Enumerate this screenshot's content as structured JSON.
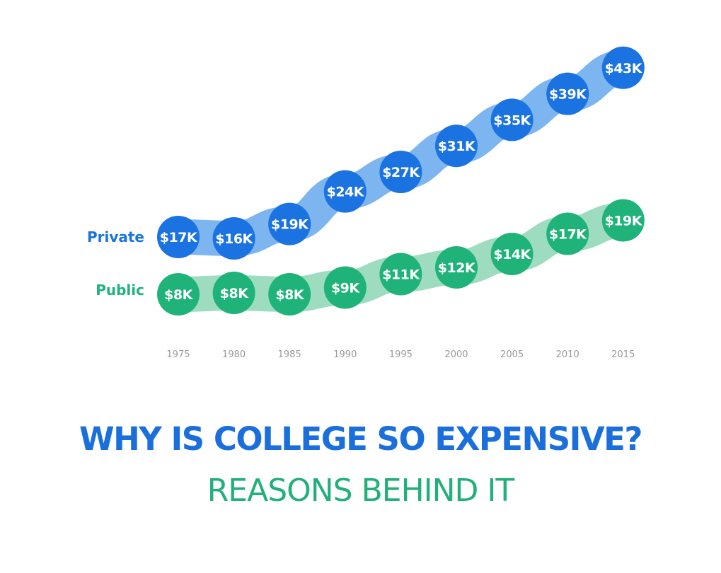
{
  "chart_data": {
    "type": "line",
    "title": "",
    "xlabel": "",
    "ylabel": "",
    "x": [
      "1975",
      "1980",
      "1985",
      "1990",
      "1995",
      "2000",
      "2005",
      "2010",
      "2015"
    ],
    "series": [
      {
        "name": "Private",
        "values": [
          17,
          16,
          19,
          24,
          27,
          31,
          35,
          39,
          43
        ],
        "labels": [
          "$17K",
          "$16K",
          "$19K",
          "$24K",
          "$27K",
          "$31K",
          "$35K",
          "$39K",
          "$43K"
        ],
        "color": "#1a73e0",
        "band_color": "#7db5f0"
      },
      {
        "name": "Public",
        "values": [
          8,
          8,
          8,
          9,
          11,
          12,
          14,
          17,
          19
        ],
        "labels": [
          "$8K",
          "$8K",
          "$8K",
          "$9K",
          "$11K",
          "$12K",
          "$14K",
          "$17K",
          "$19K"
        ],
        "color": "#1fb37a",
        "band_color": "#9edcc0"
      }
    ],
    "grid": false,
    "legend": "left"
  },
  "headline": {
    "title": "WHY IS COLLEGE SO EXPENSIVE?",
    "subtitle": "REASONS BEHIND IT"
  }
}
